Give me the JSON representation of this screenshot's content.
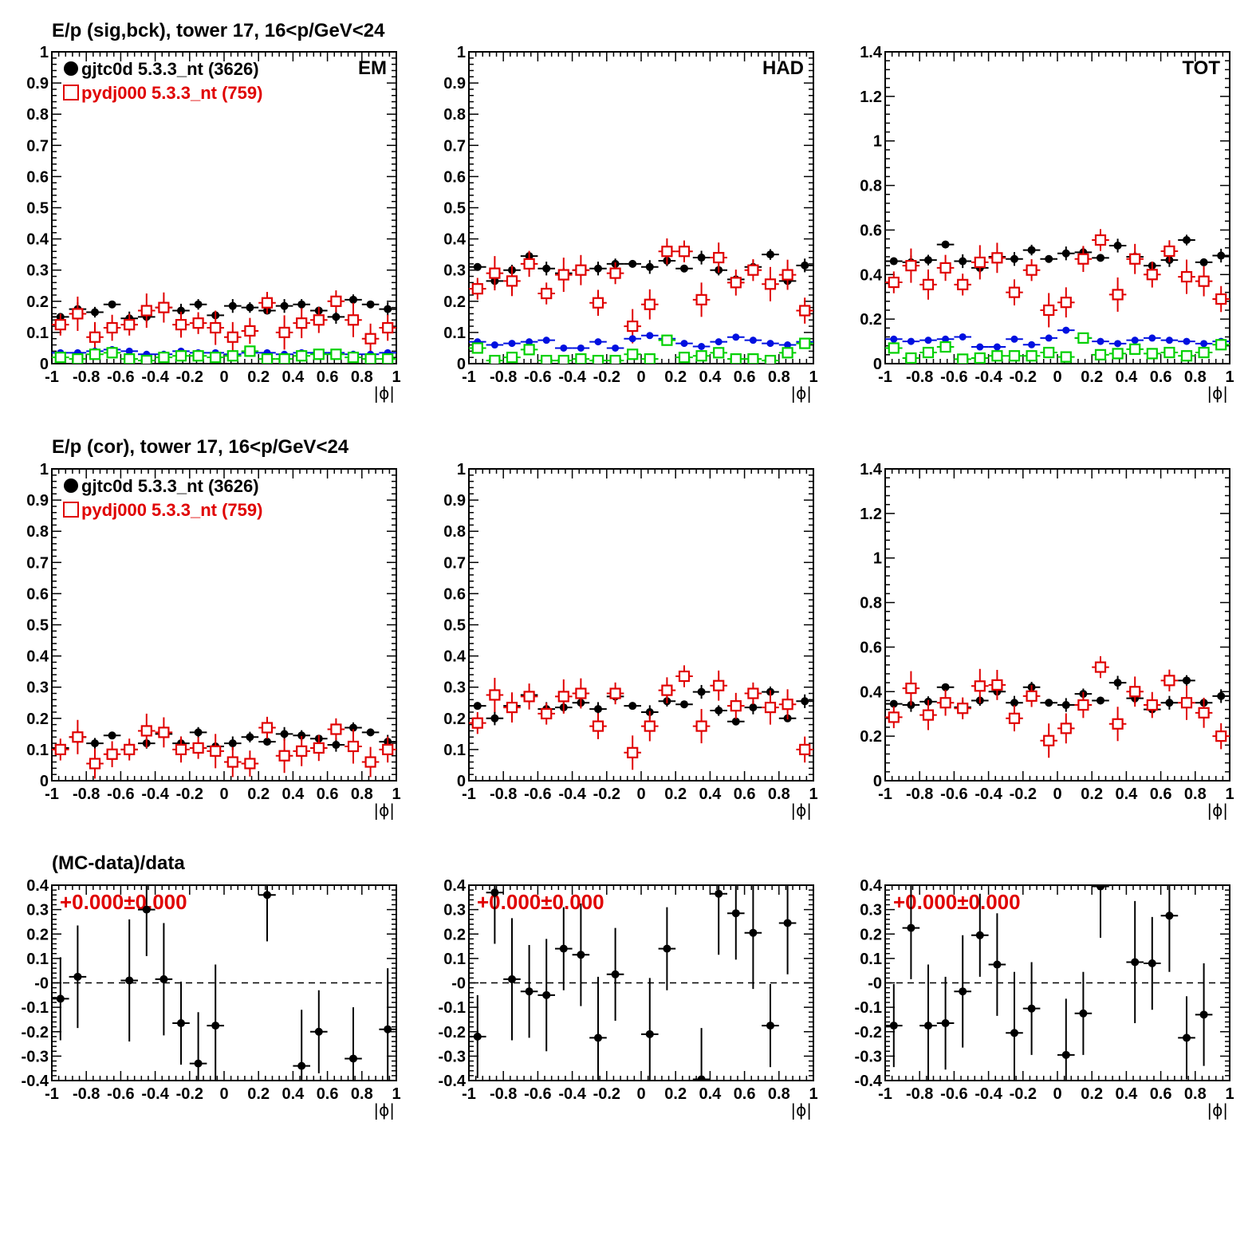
{
  "colors": {
    "data": "#000000",
    "mc": "#e00000",
    "bg_data": "#0010e0",
    "bg_mc": "#00d000"
  },
  "rows": [
    {
      "title": "E/p (sig,bck), tower 17, 16<p/GeV<24"
    },
    {
      "title": "E/p (cor), tower 17, 16<p/GeV<24"
    },
    {
      "title": "(MC-data)/data"
    }
  ],
  "legend": {
    "data": {
      "label": "gjtc0d 5.3.3_nt (3626)",
      "marker": "filled-circle"
    },
    "mc": {
      "label": "pydj000 5.3.3_nt (759)",
      "marker": "open-square"
    }
  },
  "chart_data": [
    {
      "id": "sig-em",
      "type": "scatter",
      "tag": "EM",
      "xlabel": "|ϕ|",
      "xlim": [
        -1,
        1
      ],
      "ylim": [
        0,
        1
      ],
      "x": [
        -0.95,
        -0.85,
        -0.75,
        -0.65,
        -0.55,
        -0.45,
        -0.35,
        -0.25,
        -0.15,
        -0.05,
        0.05,
        0.15,
        0.25,
        0.35,
        0.45,
        0.55,
        0.65,
        0.75,
        0.85,
        0.95
      ],
      "series": [
        {
          "key": "data",
          "values": [
            0.15,
            0.175,
            0.165,
            0.19,
            0.145,
            0.15,
            0.18,
            0.17,
            0.19,
            0.155,
            0.185,
            0.18,
            0.17,
            0.185,
            0.19,
            0.17,
            0.15,
            0.205,
            0.19,
            0.175
          ]
        },
        {
          "key": "mc",
          "values": [
            0.125,
            0.16,
            0.085,
            0.115,
            0.125,
            0.17,
            0.18,
            0.125,
            0.13,
            0.115,
            0.085,
            0.105,
            0.195,
            0.1,
            0.13,
            0.14,
            0.2,
            0.14,
            0.08,
            0.115
          ]
        },
        {
          "key": "bg_data",
          "values": [
            0.035,
            0.035,
            0.04,
            0.045,
            0.04,
            0.03,
            0.03,
            0.04,
            0.035,
            0.035,
            0.03,
            0.035,
            0.035,
            0.03,
            0.035,
            0.035,
            0.035,
            0.03,
            0.03,
            0.035
          ]
        },
        {
          "key": "bg_mc",
          "values": [
            0.02,
            0.015,
            0.03,
            0.035,
            0.015,
            0.01,
            0.02,
            0.025,
            0.025,
            0.02,
            0.025,
            0.04,
            0.015,
            0.015,
            0.025,
            0.03,
            0.03,
            0.02,
            0.015,
            0.015
          ]
        }
      ]
    },
    {
      "id": "sig-had",
      "type": "scatter",
      "tag": "HAD",
      "xlabel": "|ϕ|",
      "xlim": [
        -1,
        1
      ],
      "ylim": [
        0,
        1
      ],
      "x": [
        -0.95,
        -0.85,
        -0.75,
        -0.65,
        -0.55,
        -0.45,
        -0.35,
        -0.25,
        -0.15,
        -0.05,
        0.05,
        0.15,
        0.25,
        0.35,
        0.45,
        0.55,
        0.65,
        0.75,
        0.85,
        0.95
      ],
      "series": [
        {
          "key": "data",
          "values": [
            0.31,
            0.265,
            0.3,
            0.345,
            0.305,
            0.29,
            0.3,
            0.305,
            0.32,
            0.32,
            0.31,
            0.33,
            0.305,
            0.34,
            0.3,
            0.27,
            0.31,
            0.35,
            0.265,
            0.315
          ]
        },
        {
          "key": "mc",
          "values": [
            0.24,
            0.29,
            0.265,
            0.32,
            0.225,
            0.285,
            0.3,
            0.195,
            0.29,
            0.12,
            0.19,
            0.36,
            0.36,
            0.205,
            0.34,
            0.26,
            0.3,
            0.255,
            0.285,
            0.17
          ]
        },
        {
          "key": "bg_data",
          "values": [
            0.07,
            0.06,
            0.065,
            0.07,
            0.075,
            0.05,
            0.05,
            0.07,
            0.05,
            0.08,
            0.09,
            0.08,
            0.065,
            0.055,
            0.07,
            0.085,
            0.075,
            0.065,
            0.06,
            0.07
          ]
        },
        {
          "key": "bg_mc",
          "values": [
            0.05,
            0.01,
            0.02,
            0.045,
            0.01,
            0.01,
            0.015,
            0.01,
            0.01,
            0.03,
            0.015,
            0.075,
            0.02,
            0.025,
            0.035,
            0.015,
            0.015,
            0.01,
            0.035,
            0.065
          ]
        }
      ]
    },
    {
      "id": "sig-tot",
      "type": "scatter",
      "tag": "TOT",
      "xlabel": "|ϕ|",
      "xlim": [
        -1,
        1
      ],
      "ylim": [
        0,
        1.4
      ],
      "x": [
        -0.95,
        -0.85,
        -0.75,
        -0.65,
        -0.55,
        -0.45,
        -0.35,
        -0.25,
        -0.15,
        -0.05,
        0.05,
        0.15,
        0.25,
        0.35,
        0.45,
        0.55,
        0.65,
        0.75,
        0.85,
        0.95
      ],
      "series": [
        {
          "key": "data",
          "values": [
            0.46,
            0.455,
            0.465,
            0.535,
            0.46,
            0.43,
            0.48,
            0.47,
            0.51,
            0.47,
            0.495,
            0.5,
            0.475,
            0.53,
            0.48,
            0.44,
            0.465,
            0.555,
            0.455,
            0.485
          ]
        },
        {
          "key": "mc",
          "values": [
            0.365,
            0.44,
            0.355,
            0.43,
            0.355,
            0.455,
            0.475,
            0.32,
            0.42,
            0.24,
            0.275,
            0.47,
            0.555,
            0.31,
            0.47,
            0.4,
            0.505,
            0.39,
            0.37,
            0.29
          ]
        },
        {
          "key": "bg_data",
          "values": [
            0.11,
            0.1,
            0.105,
            0.11,
            0.12,
            0.075,
            0.075,
            0.11,
            0.085,
            0.115,
            0.15,
            0.115,
            0.1,
            0.09,
            0.105,
            0.115,
            0.105,
            0.1,
            0.09,
            0.1
          ]
        },
        {
          "key": "bg_mc",
          "values": [
            0.07,
            0.025,
            0.05,
            0.075,
            0.02,
            0.025,
            0.035,
            0.035,
            0.035,
            0.05,
            0.03,
            0.115,
            0.04,
            0.045,
            0.065,
            0.045,
            0.05,
            0.035,
            0.05,
            0.085
          ]
        }
      ]
    },
    {
      "id": "cor-em",
      "type": "scatter",
      "xlabel": "|ϕ|",
      "xlim": [
        -1,
        1
      ],
      "ylim": [
        0,
        1
      ],
      "x": [
        -0.95,
        -0.85,
        -0.75,
        -0.65,
        -0.55,
        -0.45,
        -0.35,
        -0.25,
        -0.15,
        -0.05,
        0.05,
        0.15,
        0.25,
        0.35,
        0.45,
        0.55,
        0.65,
        0.75,
        0.85,
        0.95
      ],
      "series": [
        {
          "key": "data",
          "values": [
            0.105,
            0.14,
            0.12,
            0.145,
            0.1,
            0.12,
            0.15,
            0.12,
            0.155,
            0.11,
            0.12,
            0.14,
            0.125,
            0.15,
            0.145,
            0.135,
            0.115,
            0.17,
            0.155,
            0.125
          ]
        },
        {
          "key": "mc",
          "values": [
            0.1,
            0.14,
            0.055,
            0.085,
            0.1,
            0.16,
            0.155,
            0.1,
            0.105,
            0.095,
            0.06,
            0.055,
            0.17,
            0.08,
            0.095,
            0.105,
            0.165,
            0.11,
            0.06,
            0.1
          ]
        }
      ]
    },
    {
      "id": "cor-had",
      "type": "scatter",
      "xlabel": "|ϕ|",
      "xlim": [
        -1,
        1
      ],
      "ylim": [
        0,
        1
      ],
      "x": [
        -0.95,
        -0.85,
        -0.75,
        -0.65,
        -0.55,
        -0.45,
        -0.35,
        -0.25,
        -0.15,
        -0.05,
        0.05,
        0.15,
        0.25,
        0.35,
        0.45,
        0.55,
        0.65,
        0.75,
        0.85,
        0.95
      ],
      "series": [
        {
          "key": "data",
          "values": [
            0.24,
            0.2,
            0.24,
            0.275,
            0.23,
            0.235,
            0.25,
            0.23,
            0.27,
            0.24,
            0.22,
            0.255,
            0.245,
            0.285,
            0.225,
            0.19,
            0.235,
            0.285,
            0.2,
            0.255
          ]
        },
        {
          "key": "mc",
          "values": [
            0.185,
            0.275,
            0.235,
            0.27,
            0.215,
            0.27,
            0.28,
            0.175,
            0.28,
            0.09,
            0.175,
            0.29,
            0.335,
            0.175,
            0.305,
            0.24,
            0.28,
            0.235,
            0.245,
            0.1
          ]
        }
      ]
    },
    {
      "id": "cor-tot",
      "type": "scatter",
      "xlabel": "|ϕ|",
      "xlim": [
        -1,
        1
      ],
      "ylim": [
        0,
        1.4
      ],
      "x": [
        -0.95,
        -0.85,
        -0.75,
        -0.65,
        -0.55,
        -0.45,
        -0.35,
        -0.25,
        -0.15,
        -0.05,
        0.05,
        0.15,
        0.25,
        0.35,
        0.45,
        0.55,
        0.65,
        0.75,
        0.85,
        0.95
      ],
      "series": [
        {
          "key": "data",
          "values": [
            0.345,
            0.34,
            0.355,
            0.42,
            0.33,
            0.36,
            0.4,
            0.35,
            0.42,
            0.35,
            0.34,
            0.39,
            0.36,
            0.44,
            0.37,
            0.32,
            0.35,
            0.45,
            0.35,
            0.38
          ]
        },
        {
          "key": "mc",
          "values": [
            0.285,
            0.415,
            0.295,
            0.35,
            0.325,
            0.425,
            0.43,
            0.28,
            0.38,
            0.18,
            0.235,
            0.34,
            0.51,
            0.255,
            0.4,
            0.34,
            0.45,
            0.35,
            0.305,
            0.2
          ]
        }
      ]
    },
    {
      "id": "ratio-em",
      "type": "scatter",
      "xlabel": "|ϕ|",
      "xlim": [
        -1,
        1
      ],
      "ylim": [
        -0.4,
        0.4
      ],
      "fit": "+0.000±0.000",
      "x": [
        -0.95,
        -0.85,
        -0.55,
        -0.45,
        -0.35,
        -0.25,
        -0.15,
        -0.05,
        0.25,
        0.45,
        0.55,
        0.75,
        0.95
      ],
      "series": [
        {
          "key": "data",
          "values": [
            -0.065,
            0.025,
            0.01,
            0.3,
            0.015,
            -0.165,
            -0.33,
            -0.175,
            0.36,
            -0.34,
            -0.2,
            -0.31,
            -0.19
          ]
        }
      ]
    },
    {
      "id": "ratio-had",
      "type": "scatter",
      "xlabel": "|ϕ|",
      "xlim": [
        -1,
        1
      ],
      "ylim": [
        -0.4,
        0.4
      ],
      "fit": "+0.000±0.000",
      "x": [
        -0.95,
        -0.85,
        -0.75,
        -0.65,
        -0.55,
        -0.45,
        -0.35,
        -0.25,
        -0.15,
        0.05,
        0.15,
        0.35,
        0.45,
        0.55,
        0.65,
        0.75,
        0.85
      ],
      "series": [
        {
          "key": "data",
          "values": [
            -0.22,
            0.37,
            0.015,
            -0.035,
            -0.05,
            0.14,
            0.115,
            -0.225,
            0.035,
            -0.21,
            0.14,
            -0.395,
            0.365,
            0.285,
            0.205,
            -0.175,
            0.245
          ]
        }
      ]
    },
    {
      "id": "ratio-tot",
      "type": "scatter",
      "xlabel": "|ϕ|",
      "xlim": [
        -1,
        1
      ],
      "ylim": [
        -0.4,
        0.4
      ],
      "fit": "+0.000±0.000",
      "x": [
        -0.95,
        -0.85,
        -0.75,
        -0.65,
        -0.55,
        -0.45,
        -0.35,
        -0.25,
        -0.15,
        0.05,
        0.15,
        0.25,
        0.45,
        0.55,
        0.65,
        0.75,
        0.85
      ],
      "series": [
        {
          "key": "data",
          "values": [
            -0.175,
            0.225,
            -0.175,
            -0.165,
            -0.035,
            0.195,
            0.075,
            -0.205,
            -0.105,
            -0.295,
            -0.125,
            0.395,
            0.085,
            0.08,
            0.275,
            -0.225,
            -0.13
          ]
        }
      ]
    }
  ]
}
